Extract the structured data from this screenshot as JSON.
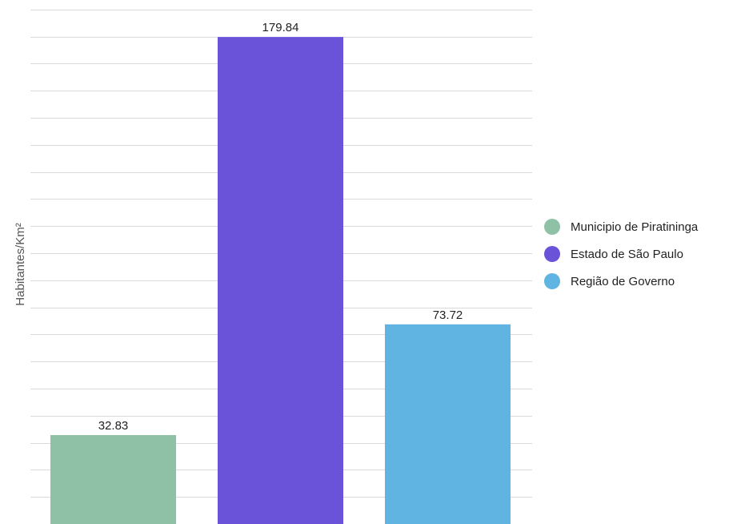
{
  "chart_data": {
    "type": "bar",
    "title": "",
    "xlabel": "",
    "ylabel": "Habitantes/Km²",
    "ylim": [
      0,
      190
    ],
    "grid": true,
    "legend_position": "right",
    "categories": [
      "Municipio de Piratininga",
      "Estado de São Paulo",
      "Região de Governo"
    ],
    "values": [
      32.83,
      179.84,
      73.72
    ],
    "value_labels": [
      "32.83",
      "179.84",
      "73.72"
    ],
    "colors": [
      "#8fc1a6",
      "#6a53d8",
      "#5fb4e2"
    ]
  }
}
